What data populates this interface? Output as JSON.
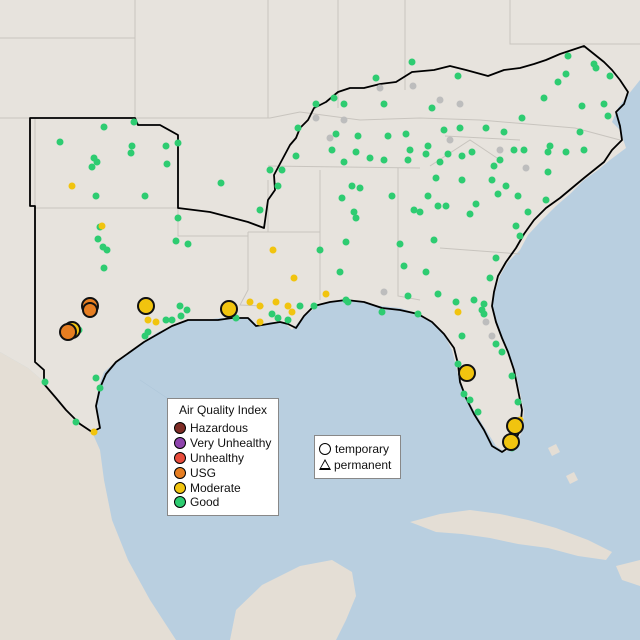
{
  "legend": {
    "title": "Air Quality Index",
    "categories": [
      {
        "label": "Hazardous",
        "color": "#7e2d26"
      },
      {
        "label": "Very Unhealthy",
        "color": "#8e44ad"
      },
      {
        "label": "Unhealthy",
        "color": "#e74c3c"
      },
      {
        "label": "USG",
        "color": "#e67e22"
      },
      {
        "label": "Moderate",
        "color": "#f1c40f"
      },
      {
        "label": "Good",
        "color": "#2ecc71"
      }
    ],
    "no_data_color": "#bdbdbd"
  },
  "shape_legend": {
    "temporary": "temporary",
    "permanent": "permanent"
  }
}
